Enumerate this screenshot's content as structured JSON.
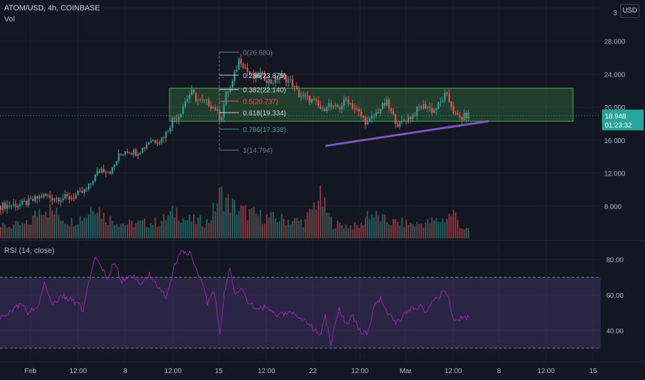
{
  "header": {
    "symbol_line": "ATOM/USD, 4h, COINBASE",
    "volume_label": "Vol",
    "rsi_label": "RSI (14, close)",
    "currency_button": "USD"
  },
  "price_badge": {
    "price": "18.948",
    "countdown": "01:23:32"
  },
  "colors": {
    "background": "#131722",
    "up": "#26a69a",
    "down": "#ef5350",
    "rsi_line": "#9c27b0",
    "rsi_band": "rgba(126,87,194,0.22)",
    "box_fill": "rgba(76,175,80,0.25)",
    "box_stroke": "#4caf50",
    "trendline": "#7e57c2",
    "price_badge": "#26a69a"
  },
  "chart_data": [
    {
      "type": "candlestick",
      "title": "ATOM/USD, 4h, COINBASE",
      "y_ticks": [
        "8.000",
        "12.000",
        "16.000",
        "20.000",
        "24.000",
        "28.000",
        "32.000"
      ],
      "ylim": [
        4.0,
        33.0
      ],
      "x_ticks": [
        "Feb",
        "12:00",
        "8",
        "12:00",
        "15",
        "12:00",
        "22",
        "12:00",
        "Mar",
        "12:00",
        "8",
        "12:00",
        "15"
      ],
      "current_price": 18.948,
      "path_anchors": [
        [
          0,
          8.0
        ],
        [
          30,
          8.2
        ],
        [
          45,
          8.6
        ],
        [
          60,
          9.3
        ],
        [
          75,
          9.0
        ],
        [
          100,
          9.0
        ],
        [
          115,
          9.5
        ],
        [
          125,
          10.0
        ],
        [
          135,
          11.5
        ],
        [
          145,
          12.5
        ],
        [
          160,
          12.2
        ],
        [
          170,
          14.0
        ],
        [
          180,
          14.8
        ],
        [
          195,
          14.5
        ],
        [
          205,
          15.0
        ],
        [
          215,
          16.0
        ],
        [
          230,
          16.0
        ],
        [
          240,
          17.0
        ],
        [
          248,
          18.5
        ],
        [
          258,
          19.0
        ],
        [
          265,
          20.5
        ],
        [
          275,
          21.8
        ],
        [
          285,
          20.8
        ],
        [
          300,
          20.5
        ],
        [
          310,
          19.8
        ],
        [
          318,
          18.5
        ],
        [
          325,
          21.5
        ],
        [
          333,
          22.5
        ],
        [
          340,
          24.5
        ],
        [
          345,
          26.0
        ],
        [
          355,
          24.5
        ],
        [
          365,
          23.5
        ],
        [
          375,
          24.0
        ],
        [
          390,
          23.0
        ],
        [
          405,
          23.8
        ],
        [
          420,
          23.0
        ],
        [
          430,
          21.5
        ],
        [
          445,
          21.0
        ],
        [
          455,
          20.5
        ],
        [
          465,
          19.5
        ],
        [
          472,
          20.5
        ],
        [
          480,
          19.8
        ],
        [
          490,
          20.0
        ],
        [
          500,
          21.0
        ],
        [
          510,
          20.0
        ],
        [
          520,
          19.0
        ],
        [
          530,
          18.0
        ],
        [
          540,
          19.0
        ],
        [
          550,
          20.0
        ],
        [
          558,
          20.5
        ],
        [
          566,
          19.0
        ],
        [
          575,
          17.8
        ],
        [
          585,
          18.5
        ],
        [
          595,
          19.0
        ],
        [
          605,
          20.0
        ],
        [
          615,
          20.2
        ],
        [
          625,
          19.5
        ],
        [
          635,
          20.5
        ],
        [
          642,
          21.5
        ],
        [
          650,
          20.5
        ],
        [
          657,
          19.0
        ],
        [
          665,
          18.6
        ],
        [
          672,
          19.0
        ],
        [
          678,
          19.0
        ]
      ],
      "volume_anchors": [
        [
          0,
          0.25
        ],
        [
          40,
          0.3
        ],
        [
          60,
          0.7
        ],
        [
          100,
          0.35
        ],
        [
          125,
          0.5
        ],
        [
          135,
          0.8
        ],
        [
          150,
          0.45
        ],
        [
          180,
          0.3
        ],
        [
          230,
          0.35
        ],
        [
          255,
          0.6
        ],
        [
          265,
          0.4
        ],
        [
          300,
          0.35
        ],
        [
          318,
          0.95
        ],
        [
          330,
          0.75
        ],
        [
          345,
          0.6
        ],
        [
          380,
          0.45
        ],
        [
          410,
          0.4
        ],
        [
          440,
          0.35
        ],
        [
          460,
          0.9
        ],
        [
          470,
          0.6
        ],
        [
          480,
          0.3
        ],
        [
          520,
          0.25
        ],
        [
          530,
          0.55
        ],
        [
          560,
          0.35
        ],
        [
          600,
          0.3
        ],
        [
          640,
          0.4
        ],
        [
          655,
          0.55
        ],
        [
          665,
          0.25
        ],
        [
          678,
          0.15
        ]
      ],
      "fibonacci": [
        {
          "ratio": "0",
          "price": 26.68,
          "label": "0(26.680)",
          "color": "#787b86"
        },
        {
          "ratio": "0.236",
          "price": 23.875,
          "label": "0.236(23.875)",
          "color": "#d1d4dc"
        },
        {
          "ratio": "0.382",
          "price": 22.14,
          "label": "0.382(22.140)",
          "color": "#d1d4dc"
        },
        {
          "ratio": "0.5",
          "price": 20.737,
          "label": "0.5(20.737)",
          "color": "#ef5350"
        },
        {
          "ratio": "0.618",
          "price": 19.334,
          "label": "0.618(19.334)",
          "color": "#d1d4dc"
        },
        {
          "ratio": "0.786",
          "price": 17.338,
          "label": "0.786(17.338)",
          "color": "#26a69a"
        },
        {
          "ratio": "1",
          "price": 14.794,
          "label": "1(14.794)",
          "color": "#787b86"
        }
      ],
      "fib_x": [
        317,
        345
      ],
      "box": {
        "x": [
          245,
          828
        ],
        "price_top": 22.3,
        "price_bottom": 18.3
      },
      "trendline": {
        "x": [
          470,
          706
        ],
        "price": [
          15.3,
          18.3
        ]
      }
    },
    {
      "type": "line",
      "title": "RSI (14, close)",
      "y_ticks": [
        "40.00",
        "60.00",
        "80.00"
      ],
      "ylim": [
        23.0,
        90.0
      ],
      "overbought": 70,
      "oversold": 30,
      "rsi_anchors": [
        [
          0,
          48
        ],
        [
          20,
          52
        ],
        [
          30,
          55
        ],
        [
          40,
          50
        ],
        [
          55,
          53
        ],
        [
          65,
          68
        ],
        [
          75,
          55
        ],
        [
          90,
          60
        ],
        [
          105,
          57
        ],
        [
          120,
          52
        ],
        [
          130,
          70
        ],
        [
          138,
          83
        ],
        [
          145,
          78
        ],
        [
          155,
          68
        ],
        [
          165,
          80
        ],
        [
          175,
          67
        ],
        [
          190,
          72
        ],
        [
          205,
          65
        ],
        [
          215,
          72
        ],
        [
          230,
          64
        ],
        [
          240,
          58
        ],
        [
          252,
          76
        ],
        [
          262,
          84
        ],
        [
          275,
          84
        ],
        [
          282,
          76
        ],
        [
          290,
          70
        ],
        [
          300,
          55
        ],
        [
          310,
          62
        ],
        [
          318,
          38
        ],
        [
          325,
          64
        ],
        [
          332,
          74
        ],
        [
          340,
          60
        ],
        [
          350,
          64
        ],
        [
          360,
          55
        ],
        [
          372,
          52
        ],
        [
          385,
          54
        ],
        [
          400,
          48
        ],
        [
          420,
          50
        ],
        [
          440,
          46
        ],
        [
          455,
          40
        ],
        [
          462,
          36
        ],
        [
          470,
          48
        ],
        [
          478,
          32
        ],
        [
          490,
          52
        ],
        [
          500,
          44
        ],
        [
          510,
          48
        ],
        [
          520,
          40
        ],
        [
          530,
          38
        ],
        [
          540,
          52
        ],
        [
          550,
          58
        ],
        [
          560,
          50
        ],
        [
          572,
          44
        ],
        [
          582,
          48
        ],
        [
          595,
          52
        ],
        [
          605,
          54
        ],
        [
          615,
          50
        ],
        [
          625,
          56
        ],
        [
          635,
          58
        ],
        [
          642,
          64
        ],
        [
          648,
          58
        ],
        [
          655,
          46
        ],
        [
          665,
          47
        ],
        [
          678,
          47
        ]
      ]
    }
  ]
}
